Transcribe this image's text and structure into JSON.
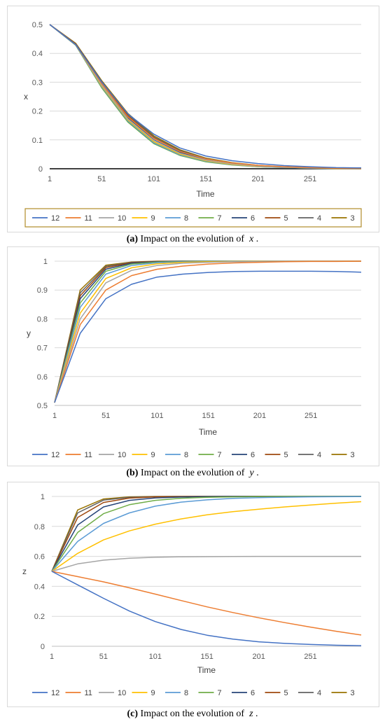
{
  "legend_labels": [
    "12",
    "11",
    "10",
    "9",
    "8",
    "7",
    "6",
    "5",
    "4",
    "3"
  ],
  "series_colors": [
    "#4472C4",
    "#ED7D31",
    "#A5A5A5",
    "#FFC000",
    "#5B9BD5",
    "#70AD47",
    "#264478",
    "#9E480E",
    "#636363",
    "#997300"
  ],
  "captions": [
    {
      "tag": "(a)",
      "text": "Impact on the evolution of",
      "var": "x"
    },
    {
      "tag": "(b)",
      "text": "Impact on the evolution of",
      "var": "y"
    },
    {
      "tag": "(c)",
      "text": "Impact on the evolution of",
      "var": "z"
    }
  ],
  "chart_data": [
    {
      "type": "line",
      "title": "",
      "xlabel": "Time",
      "ylabel": "x",
      "x_ticks": [
        1,
        51,
        101,
        151,
        201,
        251
      ],
      "xlim": [
        1,
        300
      ],
      "ylim": [
        0,
        0.5
      ],
      "y_ticks": [
        0,
        0.1,
        0.2,
        0.3,
        0.4,
        0.5
      ],
      "y_tick_labels": [
        "0",
        "0.1",
        "0.2",
        "0.3",
        "0.4",
        "0.5"
      ],
      "grid": true,
      "legend": "bottom",
      "legend_boxed": true,
      "x": [
        1,
        26,
        51,
        76,
        101,
        126,
        151,
        176,
        201,
        226,
        251,
        276,
        300
      ],
      "series": [
        {
          "name": "12",
          "values": [
            0.5,
            0.43,
            0.3,
            0.19,
            0.12,
            0.072,
            0.044,
            0.028,
            0.018,
            0.011,
            0.007,
            0.004,
            0.003
          ]
        },
        {
          "name": "11",
          "values": [
            0.5,
            0.43,
            0.295,
            0.18,
            0.105,
            0.06,
            0.034,
            0.02,
            0.012,
            0.007,
            0.004,
            0.002,
            0.001
          ]
        },
        {
          "name": "10",
          "values": [
            0.5,
            0.43,
            0.29,
            0.173,
            0.098,
            0.054,
            0.03,
            0.017,
            0.009,
            0.005,
            0.003,
            0.002,
            0.001
          ]
        },
        {
          "name": "9",
          "values": [
            0.5,
            0.43,
            0.287,
            0.17,
            0.094,
            0.051,
            0.028,
            0.015,
            0.008,
            0.005,
            0.003,
            0.001,
            0.001
          ]
        },
        {
          "name": "8",
          "values": [
            0.5,
            0.429,
            0.284,
            0.166,
            0.09,
            0.048,
            0.026,
            0.014,
            0.007,
            0.004,
            0.002,
            0.001,
            0.001
          ]
        },
        {
          "name": "7",
          "values": [
            0.5,
            0.428,
            0.28,
            0.162,
            0.087,
            0.046,
            0.024,
            0.013,
            0.007,
            0.004,
            0.002,
            0.001,
            0.0
          ]
        },
        {
          "name": "6",
          "values": [
            0.5,
            0.43,
            0.292,
            0.176,
            0.1,
            0.056,
            0.031,
            0.017,
            0.009,
            0.005,
            0.003,
            0.002,
            0.001
          ]
        },
        {
          "name": "5",
          "values": [
            0.5,
            0.432,
            0.298,
            0.183,
            0.106,
            0.06,
            0.033,
            0.019,
            0.01,
            0.006,
            0.003,
            0.002,
            0.001
          ]
        },
        {
          "name": "4",
          "values": [
            0.5,
            0.433,
            0.302,
            0.188,
            0.11,
            0.063,
            0.035,
            0.02,
            0.011,
            0.006,
            0.003,
            0.002,
            0.001
          ]
        },
        {
          "name": "3",
          "values": [
            0.5,
            0.435,
            0.305,
            0.192,
            0.114,
            0.066,
            0.037,
            0.021,
            0.012,
            0.006,
            0.004,
            0.002,
            0.001
          ]
        }
      ],
      "reference_line": {
        "y": 0,
        "color": "#000000"
      }
    },
    {
      "type": "line",
      "title": "",
      "xlabel": "Time",
      "ylabel": "y",
      "x_ticks": [
        1,
        51,
        101,
        151,
        201,
        251
      ],
      "xlim": [
        1,
        300
      ],
      "ylim": [
        0.5,
        1.0
      ],
      "y_ticks": [
        0.5,
        0.6,
        0.7,
        0.8,
        0.9,
        1.0
      ],
      "y_tick_labels": [
        "0.5",
        "0.6",
        "0.7",
        "0.8",
        "0.9",
        "1"
      ],
      "grid": true,
      "legend": "bottom",
      "legend_boxed": false,
      "x": [
        1,
        26,
        51,
        76,
        101,
        126,
        151,
        176,
        201,
        226,
        251,
        276,
        300
      ],
      "series": [
        {
          "name": "12",
          "values": [
            0.51,
            0.75,
            0.87,
            0.92,
            0.945,
            0.955,
            0.961,
            0.964,
            0.965,
            0.965,
            0.965,
            0.964,
            0.962
          ]
        },
        {
          "name": "11",
          "values": [
            0.51,
            0.78,
            0.9,
            0.95,
            0.972,
            0.983,
            0.99,
            0.994,
            0.996,
            0.998,
            0.999,
            0.999,
            1.0
          ]
        },
        {
          "name": "10",
          "values": [
            0.51,
            0.8,
            0.925,
            0.968,
            0.985,
            0.993,
            0.996,
            0.998,
            0.999,
            1.0,
            1.0,
            1.0,
            1.0
          ]
        },
        {
          "name": "9",
          "values": [
            0.51,
            0.82,
            0.94,
            0.977,
            0.991,
            0.996,
            0.998,
            0.999,
            1.0,
            1.0,
            1.0,
            1.0,
            1.0
          ]
        },
        {
          "name": "8",
          "values": [
            0.51,
            0.84,
            0.955,
            0.985,
            0.995,
            0.998,
            0.999,
            1.0,
            1.0,
            1.0,
            1.0,
            1.0,
            1.0
          ]
        },
        {
          "name": "7",
          "values": [
            0.51,
            0.855,
            0.965,
            0.99,
            0.997,
            0.999,
            1.0,
            1.0,
            1.0,
            1.0,
            1.0,
            1.0,
            1.0
          ]
        },
        {
          "name": "6",
          "values": [
            0.51,
            0.87,
            0.972,
            0.993,
            0.998,
            1.0,
            1.0,
            1.0,
            1.0,
            1.0,
            1.0,
            1.0,
            1.0
          ]
        },
        {
          "name": "5",
          "values": [
            0.51,
            0.88,
            0.978,
            0.995,
            0.999,
            1.0,
            1.0,
            1.0,
            1.0,
            1.0,
            1.0,
            1.0,
            1.0
          ]
        },
        {
          "name": "4",
          "values": [
            0.51,
            0.89,
            0.982,
            0.996,
            0.999,
            1.0,
            1.0,
            1.0,
            1.0,
            1.0,
            1.0,
            1.0,
            1.0
          ]
        },
        {
          "name": "3",
          "values": [
            0.51,
            0.9,
            0.986,
            0.997,
            1.0,
            1.0,
            1.0,
            1.0,
            1.0,
            1.0,
            1.0,
            1.0,
            1.0
          ]
        }
      ]
    },
    {
      "type": "line",
      "title": "",
      "xlabel": "Time",
      "ylabel": "z",
      "x_ticks": [
        1,
        51,
        101,
        151,
        201,
        251
      ],
      "xlim": [
        1,
        300
      ],
      "ylim": [
        0,
        1.0
      ],
      "y_ticks": [
        0,
        0.2,
        0.4,
        0.6,
        0.8,
        1.0
      ],
      "y_tick_labels": [
        "0",
        "0.2",
        "0.4",
        "0.6",
        "0.8",
        "1"
      ],
      "grid": true,
      "legend": "bottom",
      "legend_boxed": false,
      "x": [
        1,
        26,
        51,
        76,
        101,
        126,
        151,
        176,
        201,
        226,
        251,
        276,
        300
      ],
      "series": [
        {
          "name": "12",
          "values": [
            0.5,
            0.41,
            0.32,
            0.235,
            0.165,
            0.112,
            0.074,
            0.048,
            0.03,
            0.019,
            0.012,
            0.007,
            0.004
          ]
        },
        {
          "name": "11",
          "values": [
            0.5,
            0.465,
            0.43,
            0.39,
            0.348,
            0.305,
            0.263,
            0.225,
            0.19,
            0.158,
            0.128,
            0.1,
            0.075
          ]
        },
        {
          "name": "10",
          "values": [
            0.5,
            0.55,
            0.575,
            0.588,
            0.594,
            0.597,
            0.598,
            0.599,
            0.6,
            0.6,
            0.6,
            0.6,
            0.6
          ]
        },
        {
          "name": "9",
          "values": [
            0.5,
            0.62,
            0.71,
            0.77,
            0.815,
            0.85,
            0.877,
            0.898,
            0.915,
            0.93,
            0.943,
            0.955,
            0.965
          ]
        },
        {
          "name": "8",
          "values": [
            0.5,
            0.7,
            0.82,
            0.89,
            0.935,
            0.962,
            0.977,
            0.987,
            0.992,
            0.995,
            0.997,
            0.998,
            0.999
          ]
        },
        {
          "name": "7",
          "values": [
            0.5,
            0.76,
            0.885,
            0.945,
            0.974,
            0.988,
            0.994,
            0.997,
            0.999,
            1.0,
            1.0,
            1.0,
            1.0
          ]
        },
        {
          "name": "6",
          "values": [
            0.5,
            0.81,
            0.93,
            0.974,
            0.99,
            0.996,
            0.999,
            1.0,
            1.0,
            1.0,
            1.0,
            1.0,
            1.0
          ]
        },
        {
          "name": "5",
          "values": [
            0.5,
            0.86,
            0.96,
            0.989,
            0.997,
            0.999,
            1.0,
            1.0,
            1.0,
            1.0,
            1.0,
            1.0,
            1.0
          ]
        },
        {
          "name": "4",
          "values": [
            0.5,
            0.89,
            0.975,
            0.994,
            0.999,
            1.0,
            1.0,
            1.0,
            1.0,
            1.0,
            1.0,
            1.0,
            1.0
          ]
        },
        {
          "name": "3",
          "values": [
            0.5,
            0.91,
            0.983,
            0.997,
            1.0,
            1.0,
            1.0,
            1.0,
            1.0,
            1.0,
            1.0,
            1.0,
            1.0
          ]
        }
      ]
    }
  ]
}
